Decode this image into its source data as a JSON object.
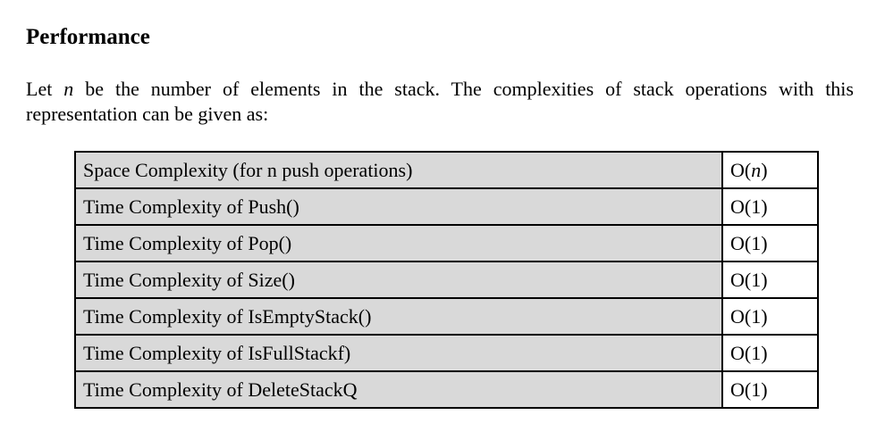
{
  "section": {
    "heading": "Performance"
  },
  "intro": {
    "before_var": "Let ",
    "var": "n",
    "after_var": " be the number of elements in the stack. The complexities of stack operations with this representation can be given as:"
  },
  "table": {
    "rows": [
      {
        "operation": "Space Complexity (for n push operations)",
        "complexity_prefix": "O(",
        "complexity_var": "n",
        "complexity_suffix": ")"
      },
      {
        "operation": "Time Complexity of Push()",
        "complexity": "O(1)"
      },
      {
        "operation": "Time Complexity of Pop()",
        "complexity": "O(1)"
      },
      {
        "operation": "Time Complexity of Size()",
        "complexity": "O(1)"
      },
      {
        "operation": "Time Complexity of IsEmptyStack()",
        "complexity": "O(1)"
      },
      {
        "operation": "Time Complexity of IsFullStackf)",
        "complexity": "O(1)"
      },
      {
        "operation": "Time Complexity of DeleteStackQ",
        "complexity": "O(1)"
      }
    ]
  },
  "colors": {
    "label_cell_bg": "#d9d9d9",
    "border": "#000000"
  }
}
